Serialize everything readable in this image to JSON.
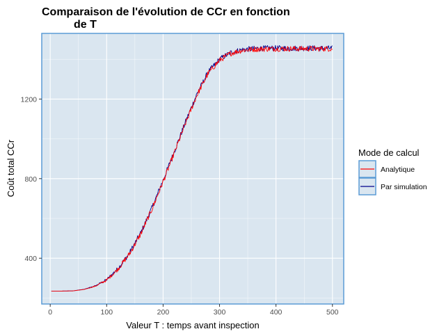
{
  "chart_data": {
    "type": "line",
    "title_line1": "Comparaison de l'évolution de CCr en fonction",
    "title_line2": "de T",
    "xlabel": "Valeur T : temps avant inspection",
    "ylabel": "Coût total CCr",
    "xlim": [
      -15,
      520
    ],
    "ylim": [
      170,
      1530
    ],
    "x_ticks": [
      0,
      100,
      200,
      300,
      400,
      500
    ],
    "x_tick_labels": [
      "0",
      "100",
      "200",
      "300",
      "400",
      "500"
    ],
    "y_ticks": [
      400,
      800,
      1200
    ],
    "y_tick_labels": [
      "400",
      "800",
      "1200"
    ],
    "grid": true,
    "panel_background": "#dae6f0",
    "panel_border": "#5b9bd5",
    "legend": {
      "title": "Mode de calcul",
      "placement": "right"
    },
    "series": [
      {
        "name": "Analytique",
        "color": "#ff0000",
        "noise_amplitude": 14,
        "x": [
          2,
          20,
          40,
          60,
          80,
          100,
          120,
          140,
          160,
          180,
          200,
          220,
          240,
          260,
          280,
          300,
          320,
          340,
          360,
          380,
          400,
          420,
          440,
          460,
          480,
          500
        ],
        "values": [
          235,
          235,
          236,
          243,
          260,
          290,
          345,
          420,
          520,
          645,
          785,
          930,
          1080,
          1220,
          1330,
          1395,
          1430,
          1445,
          1450,
          1452,
          1453,
          1453,
          1453,
          1453,
          1453,
          1453
        ]
      },
      {
        "name": "Par simulation",
        "color": "#00008b",
        "noise_amplitude": 14,
        "x": [
          2,
          20,
          40,
          60,
          80,
          100,
          120,
          140,
          160,
          180,
          200,
          220,
          240,
          260,
          280,
          300,
          320,
          340,
          360,
          380,
          400,
          420,
          440,
          460,
          480,
          500
        ],
        "values": [
          235,
          235,
          236,
          244,
          261,
          292,
          348,
          424,
          525,
          651,
          792,
          937,
          1087,
          1226,
          1336,
          1400,
          1434,
          1448,
          1453,
          1455,
          1456,
          1455,
          1455,
          1456,
          1455,
          1455
        ]
      }
    ]
  }
}
